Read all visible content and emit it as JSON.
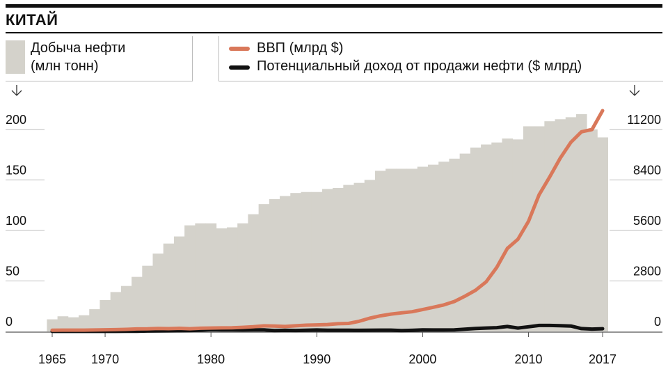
{
  "header": {
    "title": "КИТАЙ"
  },
  "legend": {
    "bars_label_line1": "Добыча нефти",
    "bars_label_line2": "(млн тонн)",
    "gdp_label": "ВВП (млрд $)",
    "income_label": "Потенциальный доход от продажи нефти ($ млрд)"
  },
  "colors": {
    "bars": "#d4d2cb",
    "gdp": "#d9785a",
    "income": "#111111"
  },
  "chart_data": {
    "type": "bar",
    "x": [
      1965,
      1966,
      1967,
      1968,
      1969,
      1970,
      1971,
      1972,
      1973,
      1974,
      1975,
      1976,
      1977,
      1978,
      1979,
      1980,
      1981,
      1982,
      1983,
      1984,
      1985,
      1986,
      1987,
      1988,
      1989,
      1990,
      1991,
      1992,
      1993,
      1994,
      1995,
      1996,
      1997,
      1998,
      1999,
      2000,
      2001,
      2002,
      2003,
      2004,
      2005,
      2006,
      2007,
      2008,
      2009,
      2010,
      2011,
      2012,
      2013,
      2014,
      2015,
      2016,
      2017
    ],
    "left_axis": {
      "ticks": [
        0,
        50,
        100,
        150,
        200
      ],
      "ylim": [
        0,
        215
      ]
    },
    "right_axis": {
      "ticks": [
        0,
        2800,
        5600,
        8400,
        11200
      ],
      "ylim": [
        0,
        12040
      ]
    },
    "x_ticks": [
      1965,
      1970,
      1980,
      1990,
      2000,
      2010,
      2017
    ],
    "series": [
      {
        "name": "Добыча нефти (млн тонн)",
        "type": "bar",
        "axis": "left",
        "values": [
          12,
          15,
          14,
          16,
          22,
          31,
          39,
          45,
          54,
          65,
          77,
          87,
          94,
          105,
          107,
          107,
          102,
          103,
          107,
          116,
          126,
          131,
          134,
          137,
          138,
          138,
          141,
          142,
          145,
          147,
          150,
          159,
          161,
          161,
          161,
          163,
          165,
          168,
          171,
          176,
          182,
          185,
          187,
          191,
          190,
          203,
          203,
          208,
          210,
          212,
          215,
          200,
          192
        ]
      },
      {
        "name": "ВВП (млрд $)",
        "type": "line",
        "axis": "right",
        "values": [
          70,
          75,
          73,
          72,
          80,
          92,
          100,
          114,
          138,
          144,
          163,
          154,
          175,
          150,
          178,
          191,
          196,
          203,
          228,
          257,
          309,
          301,
          273,
          312,
          348,
          361,
          383,
          427,
          445,
          564,
          734,
          864,
          962,
          1029,
          1094,
          1211,
          1339,
          1471,
          1660,
          1955,
          2286,
          2752,
          3552,
          4598,
          5110,
          6101,
          7573,
          8561,
          9607,
          10482,
          11065,
          11191,
          12238
        ]
      },
      {
        "name": "Потенциальный доход от продажи нефти ($ млрд)",
        "type": "line",
        "axis": "right",
        "values": [
          2,
          2,
          2,
          2,
          3,
          4,
          5,
          6,
          10,
          25,
          30,
          35,
          40,
          45,
          75,
          95,
          90,
          85,
          80,
          85,
          90,
          50,
          60,
          55,
          65,
          80,
          70,
          70,
          65,
          60,
          65,
          75,
          75,
          50,
          60,
          85,
          80,
          80,
          85,
          125,
          165,
          190,
          210,
          275,
          190,
          260,
          330,
          330,
          320,
          300,
          160,
          130,
          150
        ]
      }
    ]
  }
}
